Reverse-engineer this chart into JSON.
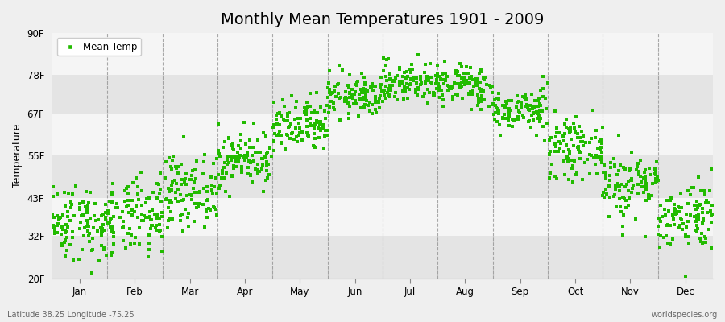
{
  "title": "Monthly Mean Temperatures 1901 - 2009",
  "ylabel": "Temperature",
  "xlabel_months": [
    "Jan",
    "Feb",
    "Mar",
    "Apr",
    "May",
    "Jun",
    "Jul",
    "Aug",
    "Sep",
    "Oct",
    "Nov",
    "Dec"
  ],
  "yticks": [
    20,
    32,
    43,
    55,
    67,
    78,
    90
  ],
  "ytick_labels": [
    "20F",
    "32F",
    "43F",
    "55F",
    "67F",
    "78F",
    "90F"
  ],
  "ylim": [
    20,
    90
  ],
  "marker_color": "#22bb00",
  "marker": "s",
  "marker_size": 2.5,
  "legend_label": "Mean Temp",
  "bottom_left": "Latitude 38.25 Longitude -75.25",
  "bottom_right": "worldspecies.org",
  "background_color": "#efefef",
  "band_colors": [
    "#e4e4e4",
    "#f5f5f5"
  ],
  "grid_color": "#888888",
  "title_fontsize": 14,
  "label_fontsize": 9,
  "tick_fontsize": 8.5,
  "monthly_means": [
    36,
    37,
    45,
    54,
    63,
    72,
    76,
    75,
    68,
    57,
    47,
    38
  ],
  "monthly_stds": [
    5.5,
    5.5,
    5,
    4,
    4,
    3,
    3,
    3,
    3,
    4,
    5,
    5
  ],
  "n_years": 109,
  "seed": 42
}
